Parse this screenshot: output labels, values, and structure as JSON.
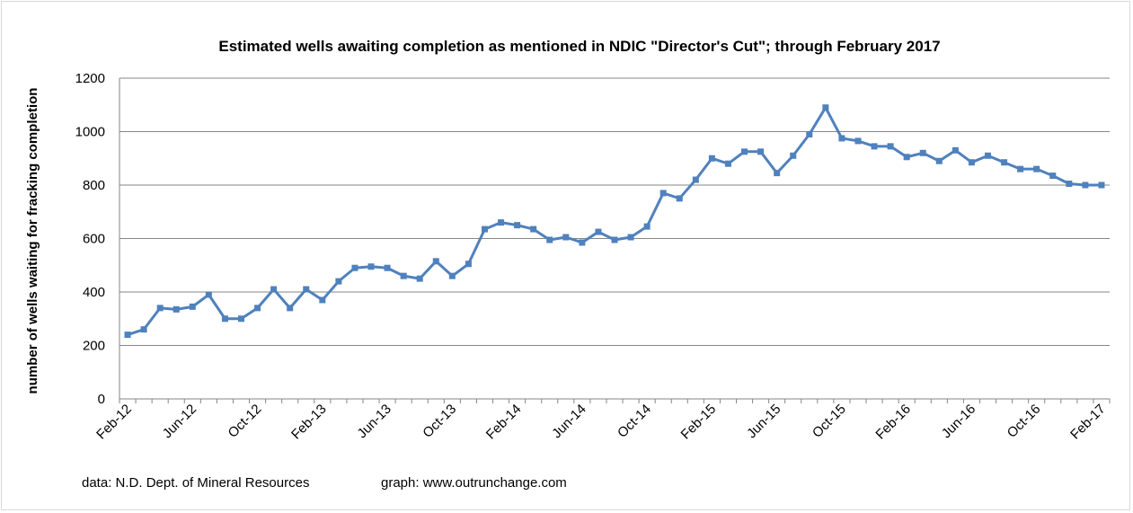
{
  "chart_data": {
    "type": "line",
    "title": "Estimated wells awaiting completion as mentioned in NDIC \"Director's Cut\"; through February 2017",
    "xlabel": "",
    "ylabel": "number of wells waiting for fracking completion",
    "ylim": [
      0,
      1200
    ],
    "yticks": [
      0,
      200,
      400,
      600,
      800,
      1000,
      1200
    ],
    "grid": true,
    "legend": "none",
    "x_tick_labels": [
      "Feb-12",
      "Jun-12",
      "Oct-12",
      "Feb-13",
      "Jun-13",
      "Oct-13",
      "Feb-14",
      "Jun-14",
      "Oct-14",
      "Feb-15",
      "Jun-15",
      "Oct-15",
      "Feb-16",
      "Jun-16",
      "Oct-16",
      "Feb-17"
    ],
    "x": [
      "Feb-12",
      "Mar-12",
      "Apr-12",
      "May-12",
      "Jun-12",
      "Jul-12",
      "Aug-12",
      "Sep-12",
      "Oct-12",
      "Nov-12",
      "Dec-12",
      "Jan-13",
      "Feb-13",
      "Mar-13",
      "Apr-13",
      "May-13",
      "Jun-13",
      "Jul-13",
      "Aug-13",
      "Sep-13",
      "Oct-13",
      "Nov-13",
      "Dec-13",
      "Jan-14",
      "Feb-14",
      "Mar-14",
      "Apr-14",
      "May-14",
      "Jun-14",
      "Jul-14",
      "Aug-14",
      "Sep-14",
      "Oct-14",
      "Nov-14",
      "Dec-14",
      "Jan-15",
      "Feb-15",
      "Mar-15",
      "Apr-15",
      "May-15",
      "Jun-15",
      "Jul-15",
      "Aug-15",
      "Sep-15",
      "Oct-15",
      "Nov-15",
      "Dec-15",
      "Jan-16",
      "Feb-16",
      "Mar-16",
      "Apr-16",
      "May-16",
      "Jun-16",
      "Jul-16",
      "Aug-16",
      "Sep-16",
      "Oct-16",
      "Nov-16",
      "Dec-16",
      "Jan-17",
      "Feb-17"
    ],
    "series": [
      {
        "values": [
          240,
          260,
          340,
          335,
          345,
          390,
          300,
          300,
          340,
          410,
          340,
          410,
          370,
          440,
          490,
          495,
          490,
          460,
          450,
          515,
          460,
          505,
          635,
          660,
          650,
          635,
          595,
          605,
          585,
          625,
          595,
          605,
          645,
          770,
          750,
          820,
          900,
          880,
          925,
          925,
          845,
          910,
          990,
          1090,
          975,
          965,
          945,
          945,
          905,
          920,
          890,
          930,
          885,
          910,
          885,
          860,
          860,
          835,
          805,
          800,
          800
        ],
        "color": "#4f81bd"
      }
    ]
  },
  "notes": {
    "source": "data: N.D. Dept. of Mineral Resources",
    "graph": "graph:  www.outrunchange.com"
  }
}
